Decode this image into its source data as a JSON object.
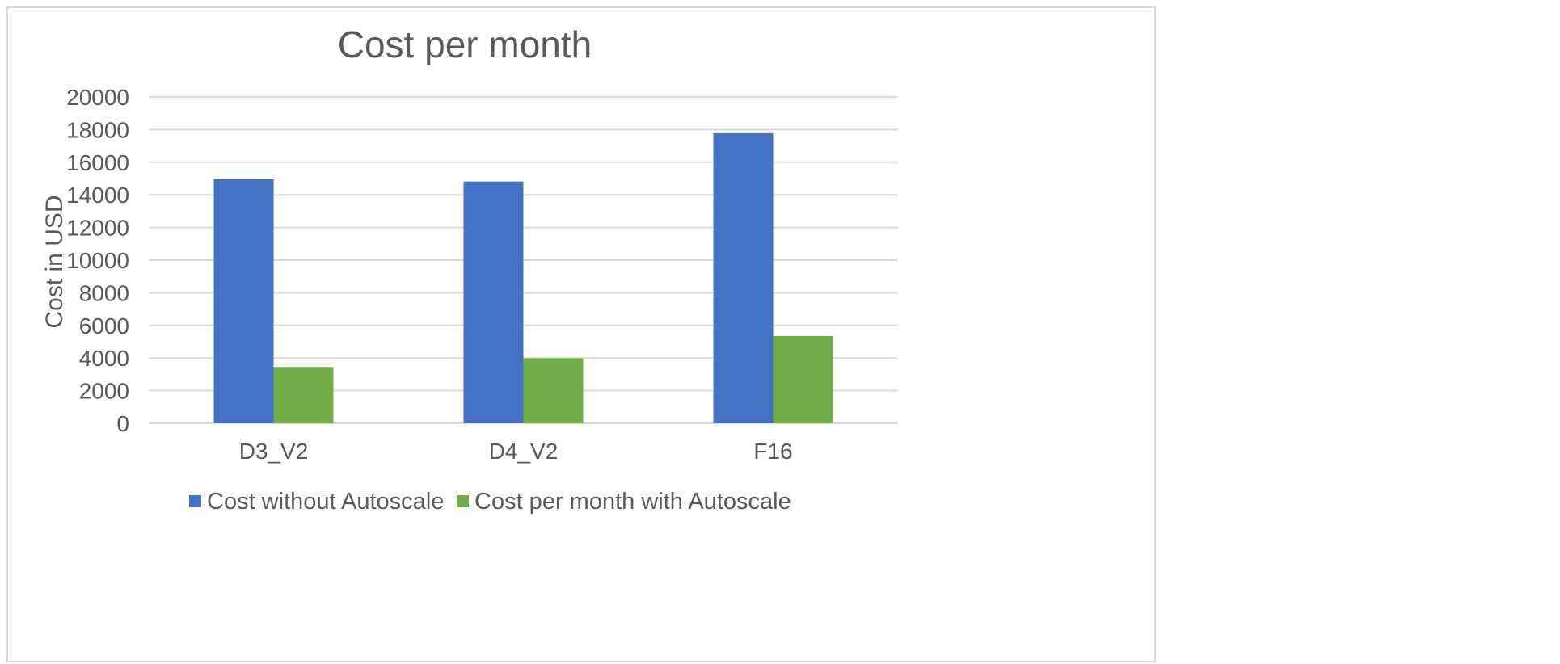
{
  "chart_data": {
    "type": "bar",
    "title": "Cost per month",
    "xlabel": "",
    "ylabel": "Cost in USD",
    "categories": [
      "D3_V2",
      "D4_V2",
      "F16"
    ],
    "series": [
      {
        "name": "Cost without Autoscale",
        "color": "#4472c4",
        "values": [
          14950,
          14820,
          17780
        ]
      },
      {
        "name": "Cost per month with Autoscale",
        "color": "#70ad47",
        "values": [
          3450,
          3980,
          5350
        ]
      }
    ],
    "ylim": [
      0,
      20000
    ],
    "yticks": [
      "0",
      "2000",
      "4000",
      "6000",
      "8000",
      "10000",
      "12000",
      "14000",
      "16000",
      "18000",
      "20000"
    ],
    "grid": true,
    "legend_position": "bottom"
  }
}
